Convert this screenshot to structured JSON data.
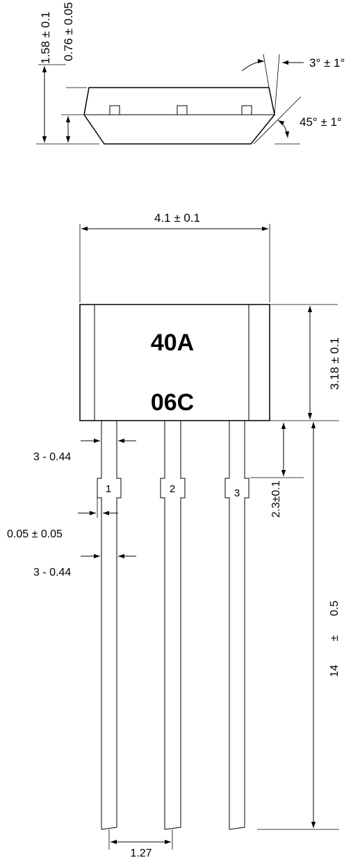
{
  "side_view": {
    "height_total": "1.58 ± 0.1",
    "height_lower": "0.76 ± 0.05",
    "draft_angle": "3° ± 1°",
    "chamfer_angle": "45° ± 1°"
  },
  "front_view": {
    "width": "4.1 ± 0.1",
    "height": "3.18 ± 0.1",
    "marking_line1": "40A",
    "marking_line2": "06C",
    "lead_width_top": "3 - 0.44",
    "lead_step": "0.05 ± 0.05",
    "lead_width_bottom": "3 - 0.44",
    "stand_off": "2.3±0.1",
    "lead_length_value": "14",
    "lead_length_pm": "±",
    "lead_length_tol": "0.5",
    "pitch": "1.27",
    "pins": [
      "1",
      "2",
      "3"
    ]
  }
}
